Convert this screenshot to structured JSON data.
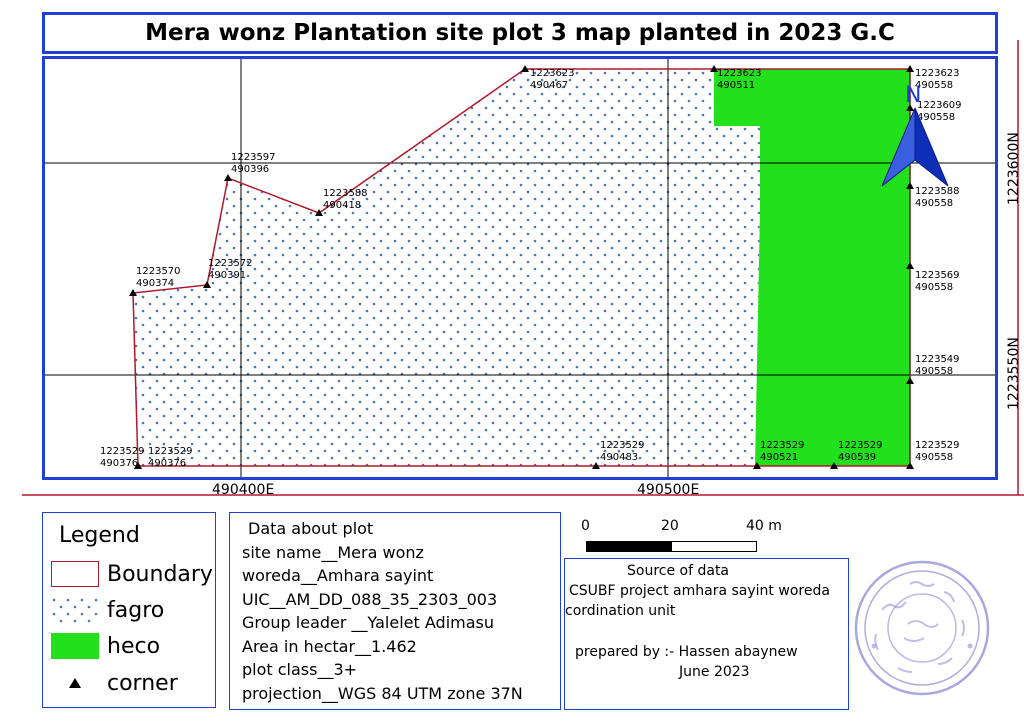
{
  "title": "Mera wonz Plantation site plot 3 map planted in 2023 G.C",
  "map": {
    "grid": {
      "easting_labels": [
        "490400E",
        "490500E"
      ],
      "northing_labels": [
        "1223600N",
        "1223550N"
      ]
    },
    "north_arrow": {
      "label": "N"
    },
    "corners": [
      {
        "n": "1223529",
        "e": "490376"
      },
      {
        "n": "1223529",
        "e": "490376"
      },
      {
        "n": "1223570",
        "e": "490374"
      },
      {
        "n": "1223572",
        "e": "490391"
      },
      {
        "n": "1223597",
        "e": "490396"
      },
      {
        "n": "1223588",
        "e": "490418"
      },
      {
        "n": "1223623",
        "e": "490467"
      },
      {
        "n": "1223623",
        "e": "490511"
      },
      {
        "n": "1223623",
        "e": "490558"
      },
      {
        "n": "1223609",
        "e": "490558"
      },
      {
        "n": "1223588",
        "e": "490558"
      },
      {
        "n": "1223569",
        "e": "490558"
      },
      {
        "n": "1223549",
        "e": "490558"
      },
      {
        "n": "1223529",
        "e": "490558"
      },
      {
        "n": "1223529",
        "e": "490539"
      },
      {
        "n": "1223529",
        "e": "490521"
      },
      {
        "n": "1223529",
        "e": "490483"
      }
    ],
    "colors": {
      "boundary": "#b2182b",
      "fagro_dots": "#4a78b8",
      "heco": "#22e01c",
      "frame": "#1f3fd6",
      "arrow": "#1f3fd6"
    }
  },
  "legend": {
    "title": "Legend",
    "items": [
      {
        "label": "Boundary"
      },
      {
        "label": "fagro"
      },
      {
        "label": "heco"
      },
      {
        "label": "corner"
      }
    ]
  },
  "info": {
    "heading": "Data about plot",
    "lines": [
      "site name__Mera wonz",
      "woreda__Amhara sayint",
      "UIC__AM_DD_088_35_2303_003",
      "Group leader __Yalelet Adimasu",
      "Area in hectar__1.462",
      "plot class__3+",
      "projection__WGS 84 UTM zone 37N"
    ]
  },
  "scale_bar": {
    "labels": [
      "0",
      "20",
      "40 m"
    ]
  },
  "source": {
    "heading": "Source of data",
    "line1": "CSUBF project amhara sayint woreda",
    "line2": "cordination unit",
    "prepared": "prepared by :- Hassen abaynew",
    "date": "June 2023"
  }
}
